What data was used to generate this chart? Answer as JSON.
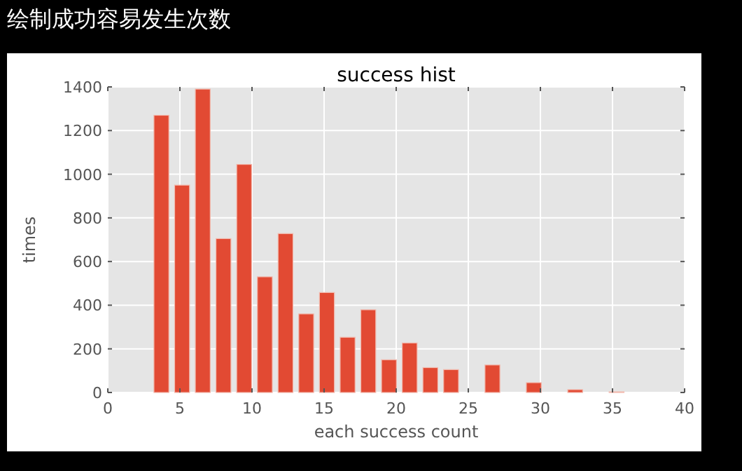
{
  "chart_data": {
    "type": "histogram",
    "title": "绘制成功容易发生次数",
    "subtitle": "success hist",
    "xlabel": "each success count",
    "ylabel": "times",
    "bins": [
      3,
      4.435,
      5.87,
      7.304,
      8.739,
      10.174,
      11.609,
      13.043,
      14.478,
      15.913,
      17.348,
      18.783,
      20.217,
      21.652,
      23.087,
      24.522,
      25.957,
      27.391,
      28.826,
      30.261,
      31.696,
      33.13,
      34.565,
      36
    ],
    "values": [
      1270,
      950,
      1390,
      705,
      1045,
      530,
      728,
      360,
      458,
      253,
      379,
      150,
      227,
      114,
      105,
      0,
      126,
      0,
      45,
      0,
      13,
      0,
      3
    ],
    "color": "#e24a33",
    "xlim": [
      0,
      40
    ],
    "xticks": [
      0,
      5,
      10,
      15,
      20,
      25,
      30,
      35,
      40
    ],
    "ylim": [
      0,
      1400
    ],
    "yticks": [
      0,
      200,
      400,
      600,
      800,
      1000,
      1200,
      1400
    ],
    "grid": true
  }
}
